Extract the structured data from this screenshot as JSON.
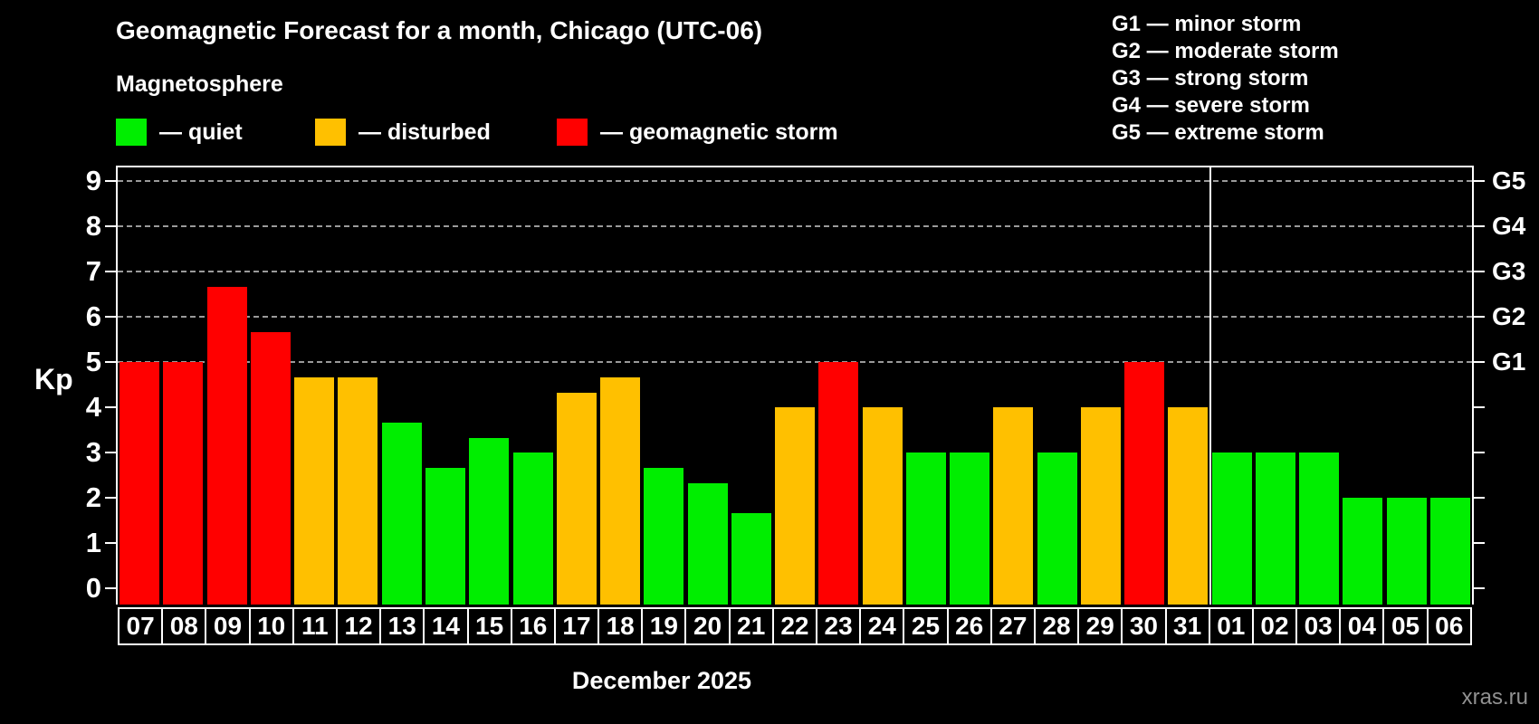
{
  "header": {
    "title": "Geomagnetic Forecast for a month, Chicago (UTC-06)",
    "subtitle": "Magnetosphere"
  },
  "legend": {
    "items": [
      {
        "key": "quiet",
        "label": "— quiet",
        "color": "#00ee00"
      },
      {
        "key": "disturbed",
        "label": "— disturbed",
        "color": "#ffc000"
      },
      {
        "key": "storm",
        "label": "— geomagnetic storm",
        "color": "#ff0000"
      }
    ]
  },
  "g_legend": [
    "G1 — minor storm",
    "G2 — moderate storm",
    "G3 — strong storm",
    "G4 — severe storm",
    "G5 — extreme storm"
  ],
  "y_axis": {
    "title": "Kp",
    "ticks": [
      0,
      1,
      2,
      3,
      4,
      5,
      6,
      7,
      8,
      9
    ]
  },
  "right_axis": {
    "labels": [
      {
        "kp": 5,
        "label": "G1"
      },
      {
        "kp": 6,
        "label": "G2"
      },
      {
        "kp": 7,
        "label": "G3"
      },
      {
        "kp": 8,
        "label": "G4"
      },
      {
        "kp": 9,
        "label": "G5"
      }
    ]
  },
  "x_axis": {
    "month_label": "December 2025"
  },
  "watermark": "xras.ru",
  "colors": {
    "quiet": "#00ee00",
    "disturbed": "#ffc000",
    "storm": "#ff0000",
    "gridline": "#9a9a9a",
    "axis": "#ffffff",
    "background": "#000000",
    "watermark": "#919191"
  },
  "chart_data": {
    "type": "bar",
    "title": "Geomagnetic Forecast for a month, Chicago (UTC-06)",
    "xlabel": "December 2025",
    "ylabel": "Kp",
    "ylim": [
      0,
      9
    ],
    "grid_levels": [
      5,
      6,
      7,
      8,
      9
    ],
    "legend_position": "top-left",
    "month_separator_after_index": 24,
    "categories": [
      "07",
      "08",
      "09",
      "10",
      "11",
      "12",
      "13",
      "14",
      "15",
      "16",
      "17",
      "18",
      "19",
      "20",
      "21",
      "22",
      "23",
      "24",
      "25",
      "26",
      "27",
      "28",
      "29",
      "30",
      "31",
      "01",
      "02",
      "03",
      "04",
      "05",
      "06"
    ],
    "values": [
      5.0,
      5.0,
      6.67,
      5.67,
      4.67,
      4.67,
      3.67,
      2.67,
      3.33,
      3.0,
      4.33,
      4.67,
      2.67,
      2.33,
      1.67,
      4.0,
      5.0,
      4.0,
      3.0,
      3.0,
      4.0,
      3.0,
      4.0,
      5.0,
      4.0,
      3.0,
      3.0,
      3.0,
      2.0,
      2.0,
      2.0
    ],
    "statuses": [
      "storm",
      "storm",
      "storm",
      "storm",
      "disturbed",
      "disturbed",
      "quiet",
      "quiet",
      "quiet",
      "quiet",
      "disturbed",
      "disturbed",
      "quiet",
      "quiet",
      "quiet",
      "disturbed",
      "storm",
      "disturbed",
      "quiet",
      "quiet",
      "disturbed",
      "quiet",
      "disturbed",
      "storm",
      "disturbed",
      "quiet",
      "quiet",
      "quiet",
      "quiet",
      "quiet",
      "quiet"
    ]
  }
}
